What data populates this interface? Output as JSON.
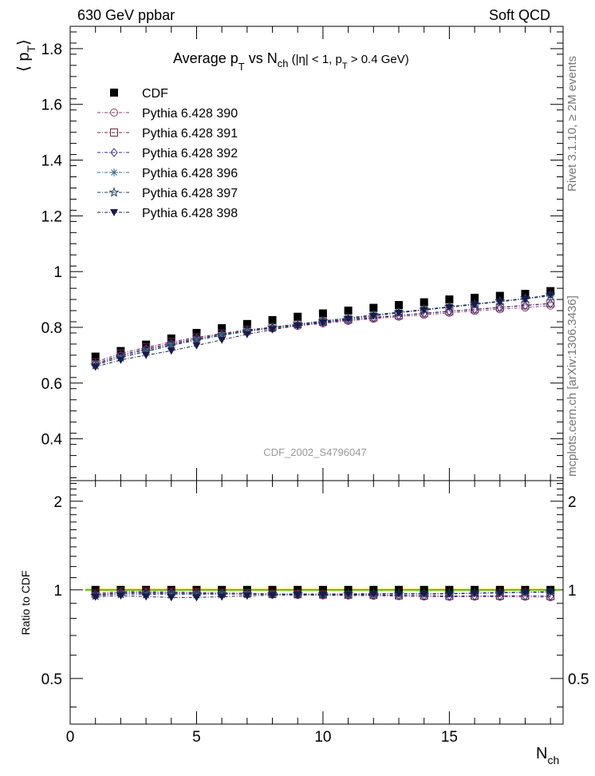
{
  "header": {
    "left": "630 GeV ppbar",
    "right": "Soft QCD"
  },
  "side": {
    "rivet": "Rivet 3.1.10, ≥ 2M events",
    "mcplots": "mcplots.cern.ch [arXiv:1306.3436]"
  },
  "labels": {
    "title_main": "Average p",
    "title_sub1": "T",
    "title_mid": " vs N",
    "title_sub2": "ch",
    "title_tail": " (|η| < 1, p",
    "title_sub3": "T",
    "title_end": " > 0.4 GeV)",
    "ylabel_main": "⟨ p",
    "ylabel_sub": "T",
    "ylabel_close": "⟩",
    "analysis": "CDF_2002_S4796047",
    "ratio_ylabel": "Ratio to CDF",
    "xlabel_main": "N",
    "xlabel_sub": "ch"
  },
  "chart_data": {
    "type": "scatter",
    "x": [
      1,
      2,
      3,
      4,
      5,
      6,
      7,
      8,
      9,
      10,
      11,
      12,
      13,
      14,
      15,
      16,
      17,
      18,
      19
    ],
    "xlim": [
      0,
      19.5
    ],
    "ylim": [
      0.25,
      1.88
    ],
    "ratio_ylim": [
      0.35,
      2.35
    ],
    "yticks": [
      0.4,
      0.6,
      0.8,
      1,
      1.2,
      1.4,
      1.6,
      1.8
    ],
    "ytick_labels": [
      "0.4",
      "0.6",
      "0.8",
      "1",
      "1.2",
      "1.4",
      "1.6",
      "1.8"
    ],
    "ratio_yticks": [
      0.5,
      1,
      2
    ],
    "ratio_ytick_labels": [
      "0.5",
      "1",
      "2"
    ],
    "xticks": [
      0,
      5,
      10,
      15
    ],
    "xtick_labels": [
      "0",
      "5",
      "10",
      "15"
    ],
    "legend_position": "top-left",
    "series": [
      {
        "name": "CDF",
        "color": "#000000",
        "marker": "filled-square",
        "values": [
          0.695,
          0.715,
          0.738,
          0.76,
          0.78,
          0.797,
          0.812,
          0.826,
          0.838,
          0.85,
          0.86,
          0.87,
          0.88,
          0.89,
          0.9,
          0.906,
          0.913,
          0.92,
          0.93
        ]
      },
      {
        "name": "Pythia 6.428 390",
        "color": "#8a3a6e",
        "marker": "open-circle",
        "values": [
          0.668,
          0.698,
          0.72,
          0.74,
          0.758,
          0.772,
          0.785,
          0.796,
          0.805,
          0.814,
          0.823,
          0.831,
          0.838,
          0.845,
          0.852,
          0.859,
          0.865,
          0.871,
          0.878
        ]
      },
      {
        "name": "Pythia 6.428 391",
        "color": "#6b2a42",
        "marker": "open-square",
        "values": [
          0.675,
          0.706,
          0.728,
          0.748,
          0.764,
          0.778,
          0.791,
          0.801,
          0.811,
          0.82,
          0.828,
          0.836,
          0.843,
          0.851,
          0.858,
          0.865,
          0.872,
          0.879,
          0.886
        ]
      },
      {
        "name": "Pythia 6.428 392",
        "color": "#3a2a80",
        "marker": "open-diamond",
        "values": [
          0.67,
          0.7,
          0.723,
          0.743,
          0.76,
          0.775,
          0.788,
          0.799,
          0.808,
          0.817,
          0.826,
          0.834,
          0.842,
          0.85,
          0.857,
          0.864,
          0.871,
          0.878,
          0.885
        ]
      },
      {
        "name": "Pythia 6.428 396",
        "color": "#3a6a8a",
        "marker": "star",
        "values": [
          0.665,
          0.693,
          0.715,
          0.737,
          0.756,
          0.773,
          0.788,
          0.8,
          0.812,
          0.823,
          0.834,
          0.845,
          0.855,
          0.864,
          0.874,
          0.883,
          0.893,
          0.902,
          0.912
        ]
      },
      {
        "name": "Pythia 6.428 397",
        "color": "#1f3d5c",
        "marker": "open-star",
        "values": [
          0.664,
          0.692,
          0.713,
          0.735,
          0.754,
          0.771,
          0.786,
          0.799,
          0.811,
          0.822,
          0.833,
          0.844,
          0.854,
          0.864,
          0.874,
          0.884,
          0.894,
          0.904,
          0.915
        ]
      },
      {
        "name": "Pythia 6.428 398",
        "color": "#1a1a4a",
        "marker": "filled-triangle-down",
        "values": [
          0.658,
          0.683,
          0.7,
          0.716,
          0.735,
          0.755,
          0.775,
          0.792,
          0.806,
          0.818,
          0.83,
          0.841,
          0.852,
          0.862,
          0.872,
          0.882,
          0.892,
          0.902,
          0.918
        ]
      }
    ]
  }
}
